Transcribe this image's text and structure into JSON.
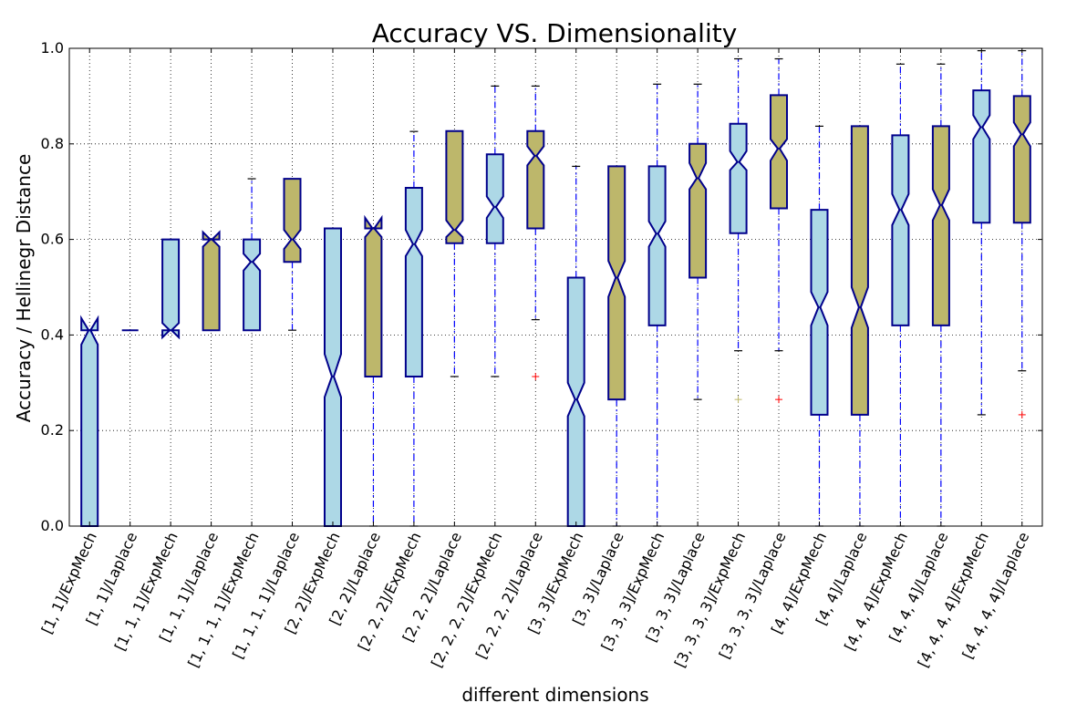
{
  "chart_data": {
    "type": "box",
    "title": "Accuracy VS. Dimensionality",
    "xlabel": "different dimensions",
    "ylabel": "Accuracy / Hellinegr Distance",
    "ylim": [
      0.0,
      1.0
    ],
    "yticks": [
      "0.0",
      "0.2",
      "0.4",
      "0.6",
      "0.8",
      "1.0"
    ],
    "grid": true,
    "notched": true,
    "colors": {
      "ExpMech": "#add8e6",
      "Laplace": "#bdb76b",
      "box_edge": "#00008b",
      "whisker": "#0000ff",
      "flier_ExpMech": "#bdb76b",
      "flier_Laplace": "#ff0000"
    },
    "categories": [
      "[1, 1]/ExpMech",
      "[1, 1]/Laplace",
      "[1, 1, 1]/ExpMech",
      "[1, 1, 1]/Laplace",
      "[1, 1, 1, 1]/ExpMech",
      "[1, 1, 1, 1]/Laplace",
      "[2, 2]/ExpMech",
      "[2, 2]/Laplace",
      "[2, 2, 2]/ExpMech",
      "[2, 2, 2]/Laplace",
      "[2, 2, 2, 2]/ExpMech",
      "[2, 2, 2, 2]/Laplace",
      "[3, 3]/ExpMech",
      "[3, 3]/Laplace",
      "[3, 3, 3]/ExpMech",
      "[3, 3, 3]/Laplace",
      "[3, 3, 3, 3]/ExpMech",
      "[3, 3, 3, 3]/Laplace",
      "[4, 4]/ExpMech",
      "[4, 4]/Laplace",
      "[4, 4, 4]/ExpMech",
      "[4, 4, 4]/Laplace",
      "[4, 4, 4, 4]/ExpMech",
      "[4, 4, 4, 4]/Laplace"
    ],
    "boxes": [
      {
        "method": "ExpMech",
        "whislo": 0.0,
        "q1": 0.0,
        "med": 0.41,
        "q3": 0.41,
        "whishi": 0.41,
        "notch_lo": 0.38,
        "notch_hi": 0.435,
        "fliers": []
      },
      {
        "method": "Laplace",
        "whislo": 0.41,
        "q1": 0.41,
        "med": 0.41,
        "q3": 0.41,
        "whishi": 0.41,
        "notch_lo": 0.41,
        "notch_hi": 0.41,
        "fliers": []
      },
      {
        "method": "ExpMech",
        "whislo": 0.41,
        "q1": 0.41,
        "med": 0.41,
        "q3": 0.6,
        "whishi": 0.6,
        "notch_lo": 0.395,
        "notch_hi": 0.425,
        "fliers": []
      },
      {
        "method": "Laplace",
        "whislo": 0.41,
        "q1": 0.41,
        "med": 0.6,
        "q3": 0.6,
        "whishi": 0.6,
        "notch_lo": 0.585,
        "notch_hi": 0.615,
        "fliers": []
      },
      {
        "method": "ExpMech",
        "whislo": 0.41,
        "q1": 0.41,
        "med": 0.553,
        "q3": 0.6,
        "whishi": 0.727,
        "notch_lo": 0.535,
        "notch_hi": 0.57,
        "fliers": []
      },
      {
        "method": "Laplace",
        "whislo": 0.41,
        "q1": 0.553,
        "med": 0.6,
        "q3": 0.727,
        "whishi": 0.727,
        "notch_lo": 0.58,
        "notch_hi": 0.62,
        "fliers": []
      },
      {
        "method": "ExpMech",
        "whislo": 0.0,
        "q1": 0.0,
        "med": 0.313,
        "q3": 0.623,
        "whishi": 0.623,
        "notch_lo": 0.27,
        "notch_hi": 0.36,
        "fliers": []
      },
      {
        "method": "Laplace",
        "whislo": 0.0,
        "q1": 0.313,
        "med": 0.623,
        "q3": 0.623,
        "whishi": 0.623,
        "notch_lo": 0.605,
        "notch_hi": 0.645,
        "fliers": []
      },
      {
        "method": "ExpMech",
        "whislo": 0.0,
        "q1": 0.313,
        "med": 0.59,
        "q3": 0.708,
        "whishi": 0.826,
        "notch_lo": 0.565,
        "notch_hi": 0.62,
        "fliers": []
      },
      {
        "method": "Laplace",
        "whislo": 0.313,
        "q1": 0.592,
        "med": 0.62,
        "q3": 0.827,
        "whishi": 0.827,
        "notch_lo": 0.605,
        "notch_hi": 0.64,
        "fliers": []
      },
      {
        "method": "ExpMech",
        "whislo": 0.313,
        "q1": 0.592,
        "med": 0.668,
        "q3": 0.778,
        "whishi": 0.921,
        "notch_lo": 0.645,
        "notch_hi": 0.69,
        "fliers": []
      },
      {
        "method": "Laplace",
        "whislo": 0.432,
        "q1": 0.623,
        "med": 0.775,
        "q3": 0.827,
        "whishi": 0.921,
        "notch_lo": 0.755,
        "notch_hi": 0.795,
        "fliers": [
          0.313
        ]
      },
      {
        "method": "ExpMech",
        "whislo": 0.0,
        "q1": 0.0,
        "med": 0.265,
        "q3": 0.52,
        "whishi": 0.753,
        "notch_lo": 0.23,
        "notch_hi": 0.3,
        "fliers": []
      },
      {
        "method": "Laplace",
        "whislo": 0.0,
        "q1": 0.265,
        "med": 0.52,
        "q3": 0.753,
        "whishi": 0.753,
        "notch_lo": 0.48,
        "notch_hi": 0.555,
        "fliers": []
      },
      {
        "method": "ExpMech",
        "whislo": 0.0,
        "q1": 0.42,
        "med": 0.612,
        "q3": 0.753,
        "whishi": 0.925,
        "notch_lo": 0.585,
        "notch_hi": 0.638,
        "fliers": []
      },
      {
        "method": "Laplace",
        "whislo": 0.265,
        "q1": 0.52,
        "med": 0.728,
        "q3": 0.8,
        "whishi": 0.925,
        "notch_lo": 0.705,
        "notch_hi": 0.76,
        "fliers": []
      },
      {
        "method": "ExpMech",
        "whislo": 0.367,
        "q1": 0.613,
        "med": 0.762,
        "q3": 0.842,
        "whishi": 0.978,
        "notch_lo": 0.745,
        "notch_hi": 0.785,
        "fliers": [
          0.265
        ]
      },
      {
        "method": "Laplace",
        "whislo": 0.367,
        "q1": 0.665,
        "med": 0.79,
        "q3": 0.902,
        "whishi": 0.978,
        "notch_lo": 0.765,
        "notch_hi": 0.81,
        "fliers": [
          0.265
        ]
      },
      {
        "method": "ExpMech",
        "whislo": 0.0,
        "q1": 0.233,
        "med": 0.458,
        "q3": 0.662,
        "whishi": 0.837,
        "notch_lo": 0.42,
        "notch_hi": 0.49,
        "fliers": []
      },
      {
        "method": "Laplace",
        "whislo": 0.0,
        "q1": 0.233,
        "med": 0.458,
        "q3": 0.837,
        "whishi": 0.837,
        "notch_lo": 0.415,
        "notch_hi": 0.5,
        "fliers": []
      },
      {
        "method": "ExpMech",
        "whislo": 0.0,
        "q1": 0.42,
        "med": 0.662,
        "q3": 0.818,
        "whishi": 0.967,
        "notch_lo": 0.63,
        "notch_hi": 0.695,
        "fliers": []
      },
      {
        "method": "Laplace",
        "whislo": 0.0,
        "q1": 0.42,
        "med": 0.672,
        "q3": 0.837,
        "whishi": 0.967,
        "notch_lo": 0.64,
        "notch_hi": 0.705,
        "fliers": []
      },
      {
        "method": "ExpMech",
        "whislo": 0.233,
        "q1": 0.635,
        "med": 0.835,
        "q3": 0.912,
        "whishi": 0.995,
        "notch_lo": 0.81,
        "notch_hi": 0.86,
        "fliers": []
      },
      {
        "method": "Laplace",
        "whislo": 0.325,
        "q1": 0.635,
        "med": 0.82,
        "q3": 0.9,
        "whishi": 0.995,
        "notch_lo": 0.795,
        "notch_hi": 0.845,
        "fliers": [
          0.233
        ]
      }
    ]
  }
}
